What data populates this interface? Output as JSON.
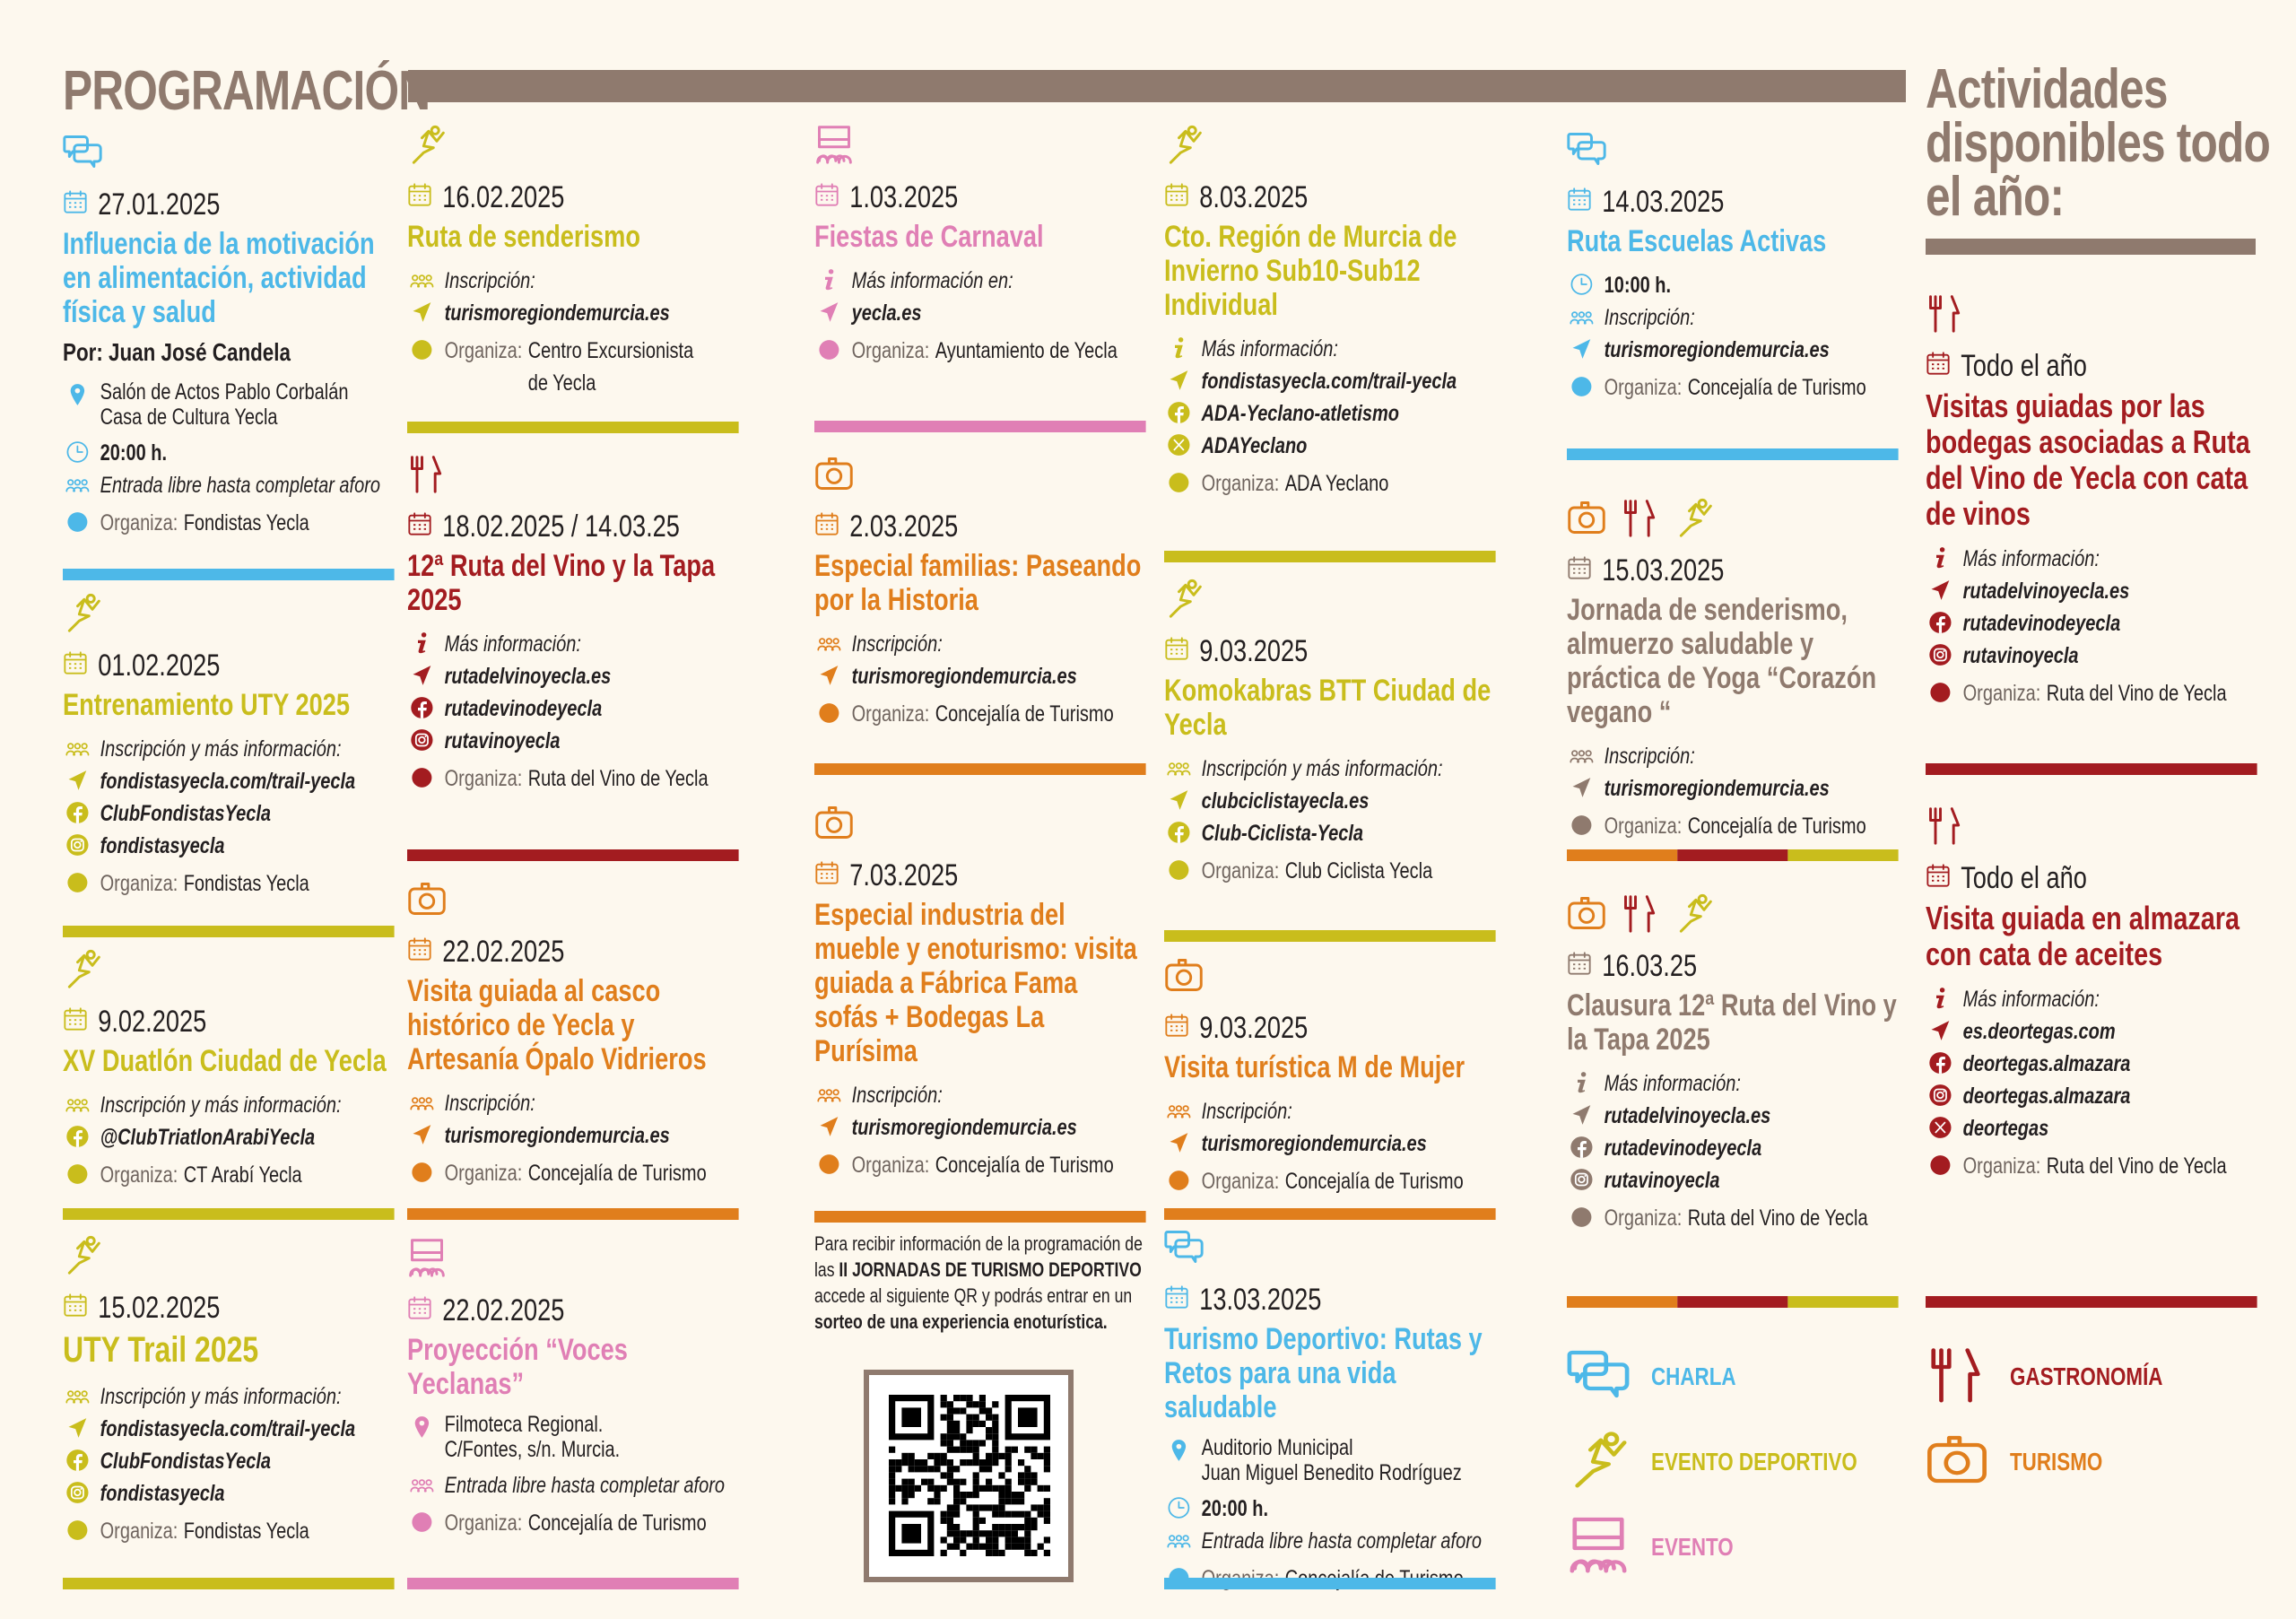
{
  "header": {
    "title": "PROGRAMACIÓN",
    "side_title": "Actividades disponibles todo el año:"
  },
  "colors": {
    "blue": "#4db8e8",
    "olive": "#c9bd1c",
    "pink": "#e07fb5",
    "orange": "#e07e1c",
    "red": "#a31c20",
    "gray": "#8f7a6e",
    "text": "#231f20"
  },
  "organiza_label": "Organiza:",
  "cards": [
    {
      "color": "blue",
      "icons": [
        "chat"
      ],
      "date": "27.01.2025",
      "title": "Influencia de la motivación en alimentación, actividad física y salud",
      "subtitle": "Por: Juan José Candela",
      "lines": [
        {
          "type": "location",
          "text": "Salón de Actos Pablo Corbalán\nCasa de Cultura Yecla"
        },
        {
          "type": "clock",
          "text": "20:00 h."
        },
        {
          "type": "people",
          "text": "Entrada libre hasta completar aforo"
        }
      ],
      "organiza": "Fondistas Yecla",
      "rule": [
        "blue"
      ]
    },
    {
      "color": "olive",
      "icons": [
        "runner"
      ],
      "date": "01.02.2025",
      "title": "Entrenamiento UTY 2025",
      "lines": [
        {
          "type": "people",
          "text": "Inscripción y más información:"
        },
        {
          "type": "link",
          "text": "fondistasyecla.com/trail-yecla"
        },
        {
          "type": "fb",
          "text": "ClubFondistasYecla"
        },
        {
          "type": "ig",
          "text": "fondistasyecla"
        }
      ],
      "organiza": "Fondistas Yecla",
      "rule": [
        "olive"
      ]
    },
    {
      "color": "olive",
      "icons": [
        "runner"
      ],
      "date": "9.02.2025",
      "title": "XV Duatlón Ciudad de Yecla",
      "lines": [
        {
          "type": "people",
          "text": "Inscripción y más información:"
        },
        {
          "type": "fb",
          "text": "@ClubTriatlonArabiYecla"
        }
      ],
      "organiza": "CT Arabí Yecla",
      "rule": [
        "olive"
      ]
    },
    {
      "color": "olive",
      "icons": [
        "runner"
      ],
      "date": "15.02.2025",
      "title": "UTY Trail 2025",
      "big": true,
      "lines": [
        {
          "type": "people",
          "text": "Inscripción y más información:"
        },
        {
          "type": "link",
          "text": "fondistasyecla.com/trail-yecla"
        },
        {
          "type": "fb",
          "text": "ClubFondistasYecla"
        },
        {
          "type": "ig",
          "text": "fondistasyecla"
        }
      ],
      "organiza": "Fondistas Yecla",
      "rule": [
        "olive"
      ]
    },
    {
      "color": "olive",
      "icons": [
        "runner"
      ],
      "date": "16.02.2025",
      "title": "Ruta de senderismo",
      "lines": [
        {
          "type": "people",
          "text": "Inscripción:"
        },
        {
          "type": "link",
          "text": "turismoregiondemurcia.es"
        }
      ],
      "organiza": "Centro Excursionista\nde Yecla",
      "rule": [
        "olive"
      ]
    },
    {
      "color": "red",
      "icons": [
        "cutlery"
      ],
      "date": "18.02.2025 / 14.03.25",
      "title": "12ª Ruta del Vino y la Tapa 2025",
      "lines": [
        {
          "type": "info",
          "text": "Más información:"
        },
        {
          "type": "link",
          "text": "rutadelvinoyecla.es"
        },
        {
          "type": "fb",
          "text": "rutadevinodeyecla"
        },
        {
          "type": "ig",
          "text": "rutavinoyecla"
        }
      ],
      "organiza": "Ruta del Vino de Yecla",
      "rule": [
        "red"
      ]
    },
    {
      "color": "orange",
      "icons": [
        "camera"
      ],
      "date": "22.02.2025",
      "title": "Visita guiada al casco histórico de Yecla y Artesanía Ópalo Vidrieros",
      "lines": [
        {
          "type": "people",
          "text": "Inscripción:"
        },
        {
          "type": "link",
          "text": "turismoregiondemurcia.es"
        }
      ],
      "organiza": "Concejalía de Turismo",
      "rule": [
        "orange"
      ]
    },
    {
      "color": "pink",
      "icons": [
        "event"
      ],
      "date": "22.02.2025",
      "title": "Proyección “Voces Yeclanas”",
      "lines": [
        {
          "type": "location",
          "text": "Filmoteca Regional.\nC/Fontes, s/n. Murcia."
        },
        {
          "type": "people",
          "text": "Entrada libre hasta completar aforo"
        }
      ],
      "organiza": "Concejalía de Turismo",
      "rule": [
        "pink"
      ]
    },
    {
      "color": "pink",
      "icons": [
        "event"
      ],
      "date": "1.03.2025",
      "title": "Fiestas de Carnaval",
      "lines": [
        {
          "type": "info",
          "text": "Más información en:"
        },
        {
          "type": "link",
          "text": "yecla.es"
        }
      ],
      "organiza": "Ayuntamiento de Yecla",
      "rule": [
        "pink"
      ]
    },
    {
      "color": "orange",
      "icons": [
        "camera"
      ],
      "date": "2.03.2025",
      "title": "Especial familias: Paseando por la Historia",
      "lines": [
        {
          "type": "people",
          "text": "Inscripción:"
        },
        {
          "type": "link",
          "text": "turismoregiondemurcia.es"
        }
      ],
      "organiza": "Concejalía de Turismo",
      "rule": [
        "orange"
      ]
    },
    {
      "color": "orange",
      "icons": [
        "camera"
      ],
      "date": "7.03.2025",
      "title": "Especial industria del mueble y enoturismo: visita guiada a Fábrica Fama sofás + Bodegas La Purísima",
      "lines": [
        {
          "type": "people",
          "text": "Inscripción:"
        },
        {
          "type": "link",
          "text": "turismoregiondemurcia.es"
        }
      ],
      "organiza": "Concejalía de Turismo",
      "rule": [
        "orange"
      ]
    },
    {
      "color": "olive",
      "icons": [
        "runner"
      ],
      "date": "8.03.2025",
      "title": "Cto. Región de Murcia de Invierno Sub10-Sub12 Individual",
      "lines": [
        {
          "type": "info",
          "text": "Más información:"
        },
        {
          "type": "link",
          "text": "fondistasyecla.com/trail-yecla"
        },
        {
          "type": "fb",
          "text": "ADA-Yeclano-atletismo"
        },
        {
          "type": "xx",
          "text": "ADAYeclano"
        }
      ],
      "organiza": "ADA Yeclano",
      "rule": [
        "olive"
      ]
    },
    {
      "color": "olive",
      "icons": [
        "runner"
      ],
      "date": "9.03.2025",
      "title": "Komokabras BTT Ciudad de Yecla",
      "lines": [
        {
          "type": "people",
          "text": "Inscripción y más información:"
        },
        {
          "type": "link",
          "text": "clubciclistayecla.es"
        },
        {
          "type": "fb",
          "text": "Club-Ciclista-Yecla"
        }
      ],
      "organiza": "Club Ciclista Yecla",
      "rule": [
        "olive"
      ]
    },
    {
      "color": "orange",
      "icons": [
        "camera"
      ],
      "date": "9.03.2025",
      "title": "Visita turística M de Mujer",
      "lines": [
        {
          "type": "people",
          "text": "Inscripción:"
        },
        {
          "type": "link",
          "text": "turismoregiondemurcia.es"
        }
      ],
      "organiza": "Concejalía de Turismo",
      "rule": [
        "orange"
      ]
    },
    {
      "color": "blue",
      "icons": [
        "chat"
      ],
      "date": "13.03.2025",
      "title": "Turismo Deportivo: Rutas y Retos para una vida saludable",
      "lines": [
        {
          "type": "location",
          "text": "Auditorio Municipal\nJuan Miguel Benedito Rodríguez"
        },
        {
          "type": "clock",
          "text": "20:00 h."
        },
        {
          "type": "people",
          "text": "Entrada libre hasta completar aforo"
        }
      ],
      "organiza": "Concejalía de Turismo",
      "rule": [
        "blue"
      ]
    },
    {
      "color": "blue",
      "icons": [
        "chat"
      ],
      "date": "14.03.2025",
      "title": "Ruta Escuelas Activas",
      "lines": [
        {
          "type": "clock",
          "text": "10:00 h."
        },
        {
          "type": "people",
          "text": "Inscripción:"
        },
        {
          "type": "link",
          "text": "turismoregiondemurcia.es"
        }
      ],
      "organiza": "Concejalía de Turismo",
      "rule": [
        "blue"
      ]
    },
    {
      "color": "gray",
      "icons": [
        "camera",
        "cutlery",
        "runner"
      ],
      "date": "15.03.2025",
      "title": "Jornada de senderismo, almuerzo saludable y práctica de Yoga “Corazón vegano “",
      "lines": [
        {
          "type": "people",
          "text": "Inscripción:"
        },
        {
          "type": "link",
          "text": "turismoregiondemurcia.es"
        }
      ],
      "organiza": "Concejalía de Turismo",
      "rule": [
        "orange",
        "red",
        "olive"
      ]
    },
    {
      "color": "gray",
      "icons": [
        "camera",
        "cutlery",
        "runner"
      ],
      "date": "16.03.25",
      "title": "Clausura 12ª Ruta del Vino y la Tapa 2025",
      "lines": [
        {
          "type": "info",
          "text": "Más información:"
        },
        {
          "type": "link",
          "text": "rutadelvinoyecla.es"
        },
        {
          "type": "fb",
          "text": "rutadevinodeyecla"
        },
        {
          "type": "ig",
          "text": "rutavinoyecla"
        }
      ],
      "organiza": "Ruta del Vino de Yecla",
      "rule": [
        "orange",
        "red",
        "olive"
      ]
    },
    {
      "color": "red",
      "icons": [
        "cutlery"
      ],
      "date": "Todo el año",
      "title": "Visitas guiadas por las bodegas asociadas a Ruta del Vino de Yecla con cata de vinos",
      "lines": [
        {
          "type": "info",
          "text": "Más información:"
        },
        {
          "type": "link",
          "text": "rutadelvinoyecla.es"
        },
        {
          "type": "fb",
          "text": "rutadevinodeyecla"
        },
        {
          "type": "ig",
          "text": "rutavinoyecla"
        }
      ],
      "organiza": "Ruta del Vino de Yecla",
      "rule": [
        "red"
      ]
    },
    {
      "color": "red",
      "icons": [
        "cutlery"
      ],
      "date": "Todo el año",
      "title": "Visita guiada en almazara con cata de aceites",
      "lines": [
        {
          "type": "info",
          "text": "Más información:"
        },
        {
          "type": "link",
          "text": "es.deortegas.com"
        },
        {
          "type": "fb",
          "text": "deortegas.almazara"
        },
        {
          "type": "ig",
          "text": "deortegas.almazara"
        },
        {
          "type": "xx",
          "text": "deortegas"
        }
      ],
      "organiza": "Ruta del Vino de Yecla",
      "rule": [
        "red"
      ]
    }
  ],
  "qr": {
    "text_1": "Para recibir información de la programación de las ",
    "text_2": "II JORNADAS DE TURISMO DEPORTIVO",
    "text_3": " accede al siguiente QR y podrás entrar en un ",
    "text_4": "sorteo de una experiencia enoturística."
  },
  "legend": [
    {
      "icon": "chat",
      "color": "blue",
      "label": "CHARLA"
    },
    {
      "icon": "runner",
      "color": "olive",
      "label": "EVENTO DEPORTIVO"
    },
    {
      "icon": "event",
      "color": "pink",
      "label": "EVENTO"
    },
    {
      "icon": "cutlery",
      "color": "red",
      "label": "GASTRONOMÍA"
    },
    {
      "icon": "camera",
      "color": "orange",
      "label": "TURISMO"
    }
  ]
}
